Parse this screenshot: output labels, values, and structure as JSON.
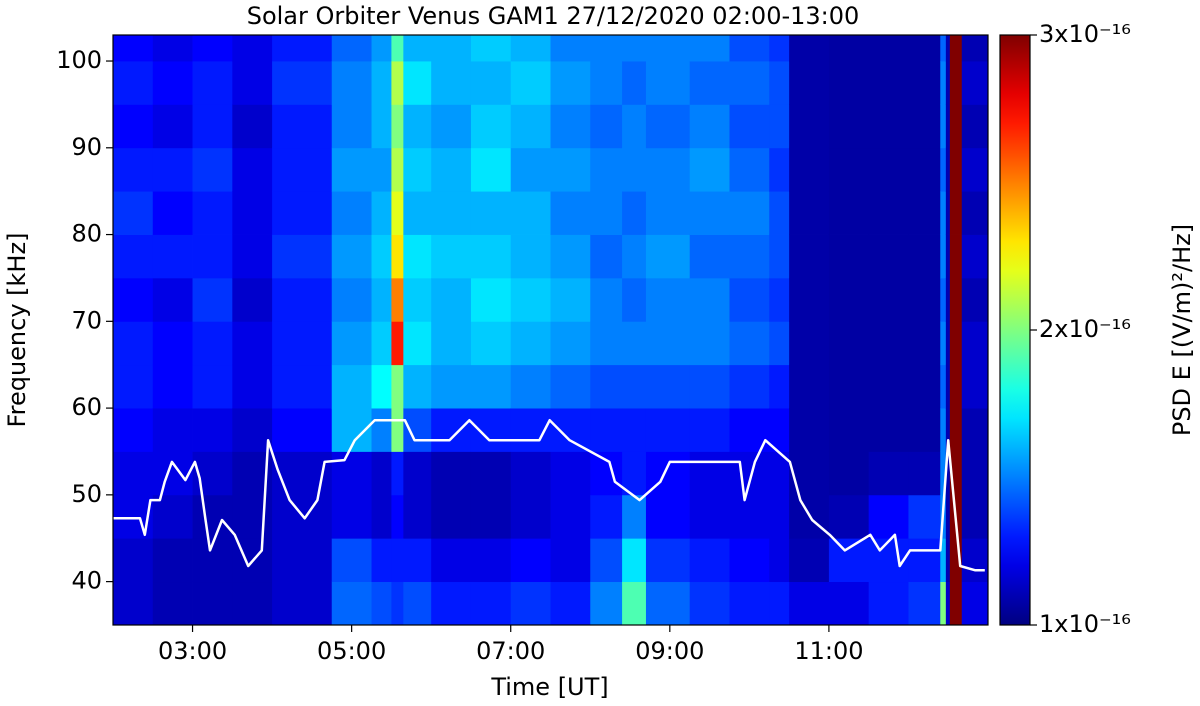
{
  "chart_data": {
    "type": "heatmap",
    "title": "Solar Orbiter Venus GAM1 27/12/2020 02:00-13:00",
    "x_label": "Time [UT]",
    "y_label": "Frequency [kHz]",
    "colorbar_label": "PSD E [(V/m)²/Hz]",
    "colormap": "jet",
    "xlim": [
      2,
      13
    ],
    "xticks": [
      {
        "value": 3,
        "label": "03:00"
      },
      {
        "value": 5,
        "label": "05:00"
      },
      {
        "value": 7,
        "label": "07:00"
      },
      {
        "value": 9,
        "label": "09:00"
      },
      {
        "value": 11,
        "label": "11:00"
      }
    ],
    "ylim": [
      35,
      103
    ],
    "yticks": [
      40,
      50,
      60,
      70,
      80,
      90,
      100
    ],
    "clim": [
      1e-16,
      3e-16
    ],
    "cticks": [
      {
        "value": 1e-16,
        "label": "1x10⁻¹⁶"
      },
      {
        "value": 2e-16,
        "label": "2x10⁻¹⁶"
      },
      {
        "value": 3e-16,
        "label": "3x10⁻¹⁶"
      }
    ],
    "heatmap": {
      "x_bins": [
        2.0,
        2.5,
        3.0,
        3.5,
        4.0,
        4.75,
        5.25,
        5.5,
        5.65,
        6.0,
        6.5,
        7.0,
        7.5,
        8.0,
        8.4,
        8.7,
        9.25,
        9.75,
        10.25,
        10.5,
        11.0,
        11.5,
        12.0,
        12.4,
        12.47,
        12.52,
        12.67,
        13.0
      ],
      "y_bins": [
        35,
        40,
        45,
        50,
        55,
        60,
        65,
        70,
        75,
        80,
        85,
        90,
        95,
        100,
        103
      ],
      "values": [
        [
          1.15e-16,
          1.15e-16,
          1.2e-16,
          1.2e-16,
          1.25e-16,
          1.3e-16,
          1.3e-16,
          1.25e-16,
          1.3e-16,
          1.35e-16,
          1.3e-16,
          1.25e-16,
          1.3e-16,
          1.25e-16
        ],
        [
          1.1e-16,
          1.1e-16,
          1.15e-16,
          1.2e-16,
          1.2e-16,
          1.25e-16,
          1.25e-16,
          1.2e-16,
          1.3e-16,
          1.25e-16,
          1.3e-16,
          1.2e-16,
          1.25e-16,
          1.2e-16
        ],
        [
          1.1e-16,
          1.1e-16,
          1.1e-16,
          1.15e-16,
          1.2e-16,
          1.3e-16,
          1.3e-16,
          1.35e-16,
          1.3e-16,
          1.3e-16,
          1.35e-16,
          1.3e-16,
          1.3e-16,
          1.25e-16
        ],
        [
          1.1e-16,
          1.1e-16,
          1.1e-16,
          1.1e-16,
          1.15e-16,
          1.2e-16,
          1.2e-16,
          1.15e-16,
          1.2e-16,
          1.2e-16,
          1.2e-16,
          1.15e-16,
          1.2e-16,
          1.2e-16
        ],
        [
          1.15e-16,
          1.15e-16,
          1.15e-16,
          1.15e-16,
          1.25e-16,
          1.3e-16,
          1.3e-16,
          1.3e-16,
          1.35e-16,
          1.3e-16,
          1.3e-16,
          1.3e-16,
          1.35e-16,
          1.3e-16
        ],
        [
          1.45e-16,
          1.4e-16,
          1.2e-16,
          1.2e-16,
          1.6e-16,
          1.6e-16,
          1.55e-16,
          1.5e-16,
          1.55e-16,
          1.5e-16,
          1.55e-16,
          1.5e-16,
          1.5e-16,
          1.45e-16
        ],
        [
          1.4e-16,
          1.3e-16,
          1.15e-16,
          1.15e-16,
          1.5e-16,
          1.75e-16,
          1.65e-16,
          1.6e-16,
          1.65e-16,
          1.6e-16,
          1.55e-16,
          1.6e-16,
          1.6e-16,
          1.55e-16
        ],
        [
          1.35e-16,
          1.3e-16,
          1.25e-16,
          1.3e-16,
          2e-16,
          2e-16,
          2.7e-16,
          2.5e-16,
          2.3e-16,
          2.2e-16,
          2.1e-16,
          2e-16,
          2.1e-16,
          1.9e-16
        ],
        [
          1.4e-16,
          1.3e-16,
          1.15e-16,
          1.15e-16,
          1.4e-16,
          1.6e-16,
          1.7e-16,
          1.65e-16,
          1.7e-16,
          1.6e-16,
          1.65e-16,
          1.6e-16,
          1.7e-16,
          1.6e-16
        ],
        [
          1.3e-16,
          1.2e-16,
          1.1e-16,
          1.1e-16,
          1.3e-16,
          1.55e-16,
          1.6e-16,
          1.6e-16,
          1.65e-16,
          1.6e-16,
          1.6e-16,
          1.55e-16,
          1.6e-16,
          1.6e-16
        ],
        [
          1.3e-16,
          1.2e-16,
          1.1e-16,
          1.1e-16,
          1.3e-16,
          1.55e-16,
          1.65e-16,
          1.7e-16,
          1.65e-16,
          1.6e-16,
          1.7e-16,
          1.65e-16,
          1.6e-16,
          1.65e-16
        ],
        [
          1.35e-16,
          1.25e-16,
          1.15e-16,
          1.15e-16,
          1.3e-16,
          1.5e-16,
          1.6e-16,
          1.65e-16,
          1.6e-16,
          1.6e-16,
          1.55e-16,
          1.6e-16,
          1.65e-16,
          1.6e-16
        ],
        [
          1.3e-16,
          1.2e-16,
          1.2e-16,
          1.2e-16,
          1.3e-16,
          1.45e-16,
          1.55e-16,
          1.6e-16,
          1.55e-16,
          1.5e-16,
          1.55e-16,
          1.5e-16,
          1.55e-16,
          1.5e-16
        ],
        [
          1.5e-16,
          1.4e-16,
          1.3e-16,
          1.25e-16,
          1.3e-16,
          1.4e-16,
          1.5e-16,
          1.5e-16,
          1.45e-16,
          1.5e-16,
          1.5e-16,
          1.45e-16,
          1.5e-16,
          1.5e-16
        ],
        [
          1.9e-16,
          1.7e-16,
          1.5e-16,
          1.3e-16,
          1.3e-16,
          1.4e-16,
          1.5e-16,
          1.45e-16,
          1.5e-16,
          1.45e-16,
          1.5e-16,
          1.5e-16,
          1.45e-16,
          1.5e-16
        ],
        [
          1.45e-16,
          1.35e-16,
          1.25e-16,
          1.25e-16,
          1.3e-16,
          1.4e-16,
          1.5e-16,
          1.5e-16,
          1.55e-16,
          1.5e-16,
          1.5e-16,
          1.45e-16,
          1.5e-16,
          1.5e-16
        ],
        [
          1.35e-16,
          1.3e-16,
          1.2e-16,
          1.2e-16,
          1.3e-16,
          1.4e-16,
          1.5e-16,
          1.5e-16,
          1.45e-16,
          1.5e-16,
          1.55e-16,
          1.5e-16,
          1.45e-16,
          1.5e-16
        ],
        [
          1.3e-16,
          1.25e-16,
          1.2e-16,
          1.2e-16,
          1.25e-16,
          1.35e-16,
          1.45e-16,
          1.4e-16,
          1.45e-16,
          1.5e-16,
          1.45e-16,
          1.4e-16,
          1.45e-16,
          1.4e-16
        ],
        [
          1.3e-16,
          1.2e-16,
          1.2e-16,
          1.2e-16,
          1.25e-16,
          1.3e-16,
          1.4e-16,
          1.35e-16,
          1.4e-16,
          1.4e-16,
          1.35e-16,
          1.4e-16,
          1.4e-16,
          1.35e-16
        ],
        [
          1.2e-16,
          1.1e-16,
          1.08e-16,
          1.08e-16,
          1.08e-16,
          1.08e-16,
          1.08e-16,
          1.08e-16,
          1.08e-16,
          1.08e-16,
          1.08e-16,
          1.08e-16,
          1.08e-16,
          1.08e-16
        ],
        [
          1.2e-16,
          1.3e-16,
          1.1e-16,
          1.07e-16,
          1.07e-16,
          1.07e-16,
          1.07e-16,
          1.07e-16,
          1.07e-16,
          1.07e-16,
          1.07e-16,
          1.07e-16,
          1.07e-16,
          1.07e-16
        ],
        [
          1.3e-16,
          1.3e-16,
          1.25e-16,
          1.1e-16,
          1.07e-16,
          1.07e-16,
          1.07e-16,
          1.07e-16,
          1.07e-16,
          1.07e-16,
          1.07e-16,
          1.07e-16,
          1.07e-16,
          1.07e-16
        ],
        [
          1.35e-16,
          1.3e-16,
          1.35e-16,
          1.1e-16,
          1.07e-16,
          1.07e-16,
          1.07e-16,
          1.07e-16,
          1.07e-16,
          1.07e-16,
          1.07e-16,
          1.07e-16,
          1.07e-16,
          1.07e-16
        ],
        [
          2e-16,
          1.6e-16,
          1.5e-16,
          1.5e-16,
          1.5e-16,
          1.45e-16,
          1.5e-16,
          1.45e-16,
          1.5e-16,
          1.5e-16,
          1.45e-16,
          1.5e-16,
          1.5e-16,
          1.45e-16
        ],
        [
          1.15e-16,
          1.1e-16,
          1.1e-16,
          1.1e-16,
          1.1e-16,
          1.1e-16,
          1.1e-16,
          1.1e-16,
          1.1e-16,
          1.1e-16,
          1.1e-16,
          1.1e-16,
          1.1e-16,
          1.1e-16
        ],
        [
          3e-16,
          3e-16,
          3e-16,
          3e-16,
          3e-16,
          3e-16,
          3e-16,
          3e-16,
          3e-16,
          3e-16,
          3e-16,
          3e-16,
          3e-16,
          3e-16
        ],
        [
          1.2e-16,
          1.15e-16,
          1.1e-16,
          1.1e-16,
          1.1e-16,
          1.15e-16,
          1.15e-16,
          1.1e-16,
          1.15e-16,
          1.1e-16,
          1.15e-16,
          1.1e-16,
          1.15e-16,
          1.1e-16
        ]
      ]
    },
    "series": [
      {
        "color": "#ffffff",
        "x": [
          2.0,
          2.34,
          2.4,
          2.47,
          2.59,
          2.65,
          2.74,
          2.91,
          3.03,
          3.09,
          3.16,
          3.22,
          3.37,
          3.53,
          3.7,
          3.87,
          3.95,
          4.07,
          4.22,
          4.41,
          4.57,
          4.66,
          4.91,
          5.04,
          5.29,
          5.67,
          5.79,
          6.23,
          6.48,
          6.73,
          7.36,
          7.49,
          7.74,
          8.24,
          8.31,
          8.62,
          8.88,
          9.0,
          9.63,
          9.88,
          9.94,
          10.07,
          10.2,
          10.51,
          10.64,
          10.79,
          11.01,
          11.2,
          11.52,
          11.64,
          11.83,
          11.89,
          12.02,
          12.4,
          12.5,
          12.65,
          12.84,
          12.96
        ],
        "values": [
          47.3,
          47.3,
          45.4,
          49.4,
          49.4,
          51.5,
          53.8,
          51.7,
          53.8,
          51.9,
          47.3,
          43.6,
          47.1,
          45.4,
          41.8,
          43.6,
          56.3,
          52.9,
          49.4,
          47.3,
          49.4,
          53.8,
          54,
          56.3,
          58.6,
          58.6,
          56.3,
          56.3,
          58.6,
          56.3,
          56.3,
          58.6,
          56.3,
          53.8,
          51.5,
          49.4,
          51.5,
          53.8,
          53.8,
          53.8,
          49.4,
          53.8,
          56.3,
          53.8,
          49.4,
          47.1,
          45.4,
          43.6,
          45.4,
          43.6,
          45.4,
          41.8,
          43.6,
          43.6,
          56.3,
          41.8,
          41.3,
          41.3
        ]
      }
    ]
  }
}
